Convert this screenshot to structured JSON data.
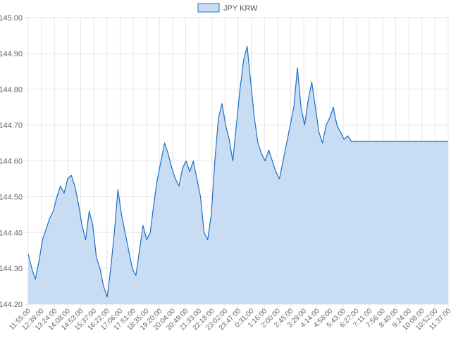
{
  "chart_data": {
    "type": "area",
    "title": "",
    "xlabel": "",
    "ylabel": "",
    "legend": {
      "placement": "top-center",
      "entries": [
        "JPY KRW"
      ]
    },
    "grid": true,
    "ylim": [
      144.2,
      145.0
    ],
    "y_ticks": [
      "145.00",
      "144.90",
      "144.80",
      "144.70",
      "144.60",
      "144.50",
      "144.40",
      "144.30",
      "144.20"
    ],
    "x_ticks": [
      "11:55:00",
      "12:39:00",
      "13:24:00",
      "14:08:00",
      "14:53:00",
      "15:37:00",
      "16:22:00",
      "17:06:00",
      "17:51:00",
      "18:35:00",
      "19:20:00",
      "20:04:00",
      "20:49:00",
      "21:33:00",
      "22:18:00",
      "23:02:00",
      "23:47:00",
      "0:31:00",
      "1:16:00",
      "2:00:00",
      "2:45:00",
      "3:29:00",
      "4:14:00",
      "4:58:00",
      "5:43:00",
      "6:27:00",
      "7:11:00",
      "7:56:00",
      "8:40:00",
      "9:24:00",
      "10:08:00",
      "10:52:00",
      "11:37:00"
    ],
    "colors": {
      "line": "#1f6fc5",
      "fill": "#c8dcf3",
      "grid": "#e6e6e6"
    },
    "series": [
      {
        "name": "JPY KRW",
        "values": [
          144.34,
          144.3,
          144.27,
          144.32,
          144.38,
          144.41,
          144.44,
          144.46,
          144.5,
          144.53,
          144.51,
          144.55,
          144.56,
          144.53,
          144.48,
          144.42,
          144.38,
          144.46,
          144.42,
          144.33,
          144.3,
          144.25,
          144.22,
          144.3,
          144.4,
          144.52,
          144.45,
          144.4,
          144.35,
          144.3,
          144.28,
          144.35,
          144.42,
          144.38,
          144.4,
          144.48,
          144.55,
          144.6,
          144.65,
          144.62,
          144.58,
          144.55,
          144.53,
          144.58,
          144.6,
          144.57,
          144.6,
          144.55,
          144.5,
          144.4,
          144.38,
          144.45,
          144.6,
          144.72,
          144.76,
          144.7,
          144.66,
          144.6,
          144.7,
          144.8,
          144.88,
          144.92,
          144.82,
          144.72,
          144.65,
          144.62,
          144.6,
          144.63,
          144.6,
          144.57,
          144.55,
          144.6,
          144.65,
          144.7,
          144.75,
          144.86,
          144.75,
          144.7,
          144.77,
          144.82,
          144.75,
          144.68,
          144.65,
          144.7,
          144.72,
          144.75,
          144.7,
          144.68,
          144.66,
          144.67,
          144.655,
          144.655,
          144.655,
          144.655,
          144.655,
          144.655,
          144.655,
          144.655,
          144.655,
          144.655,
          144.655,
          144.655,
          144.655,
          144.655,
          144.655,
          144.655,
          144.655,
          144.655,
          144.655,
          144.655,
          144.655,
          144.655,
          144.655,
          144.655,
          144.655,
          144.655,
          144.655,
          144.655
        ]
      }
    ]
  }
}
